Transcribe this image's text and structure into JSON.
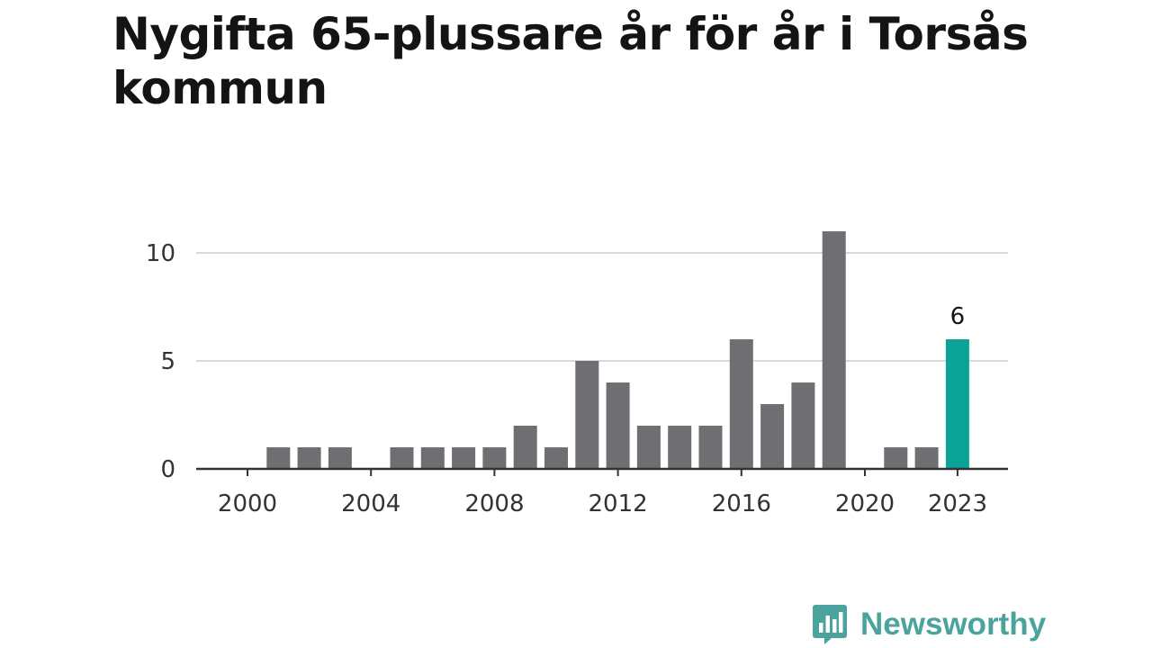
{
  "title": "Nygifta 65-plussare år för år i Torsås kommun",
  "brand": {
    "name": "Newsworthy",
    "icon": "newsworthy-logo-icon"
  },
  "colors": {
    "bar": "#6f6e73",
    "highlight": "#0ba297",
    "grid": "#d9d9d9",
    "axis": "#333333",
    "text": "#333333"
  },
  "chart_data": {
    "type": "bar",
    "x": [
      2000,
      2001,
      2002,
      2003,
      2004,
      2005,
      2006,
      2007,
      2008,
      2009,
      2010,
      2011,
      2012,
      2013,
      2014,
      2015,
      2016,
      2017,
      2018,
      2019,
      2020,
      2021,
      2022,
      2023
    ],
    "values": [
      0,
      1,
      1,
      1,
      0,
      1,
      1,
      1,
      1,
      2,
      1,
      5,
      4,
      2,
      2,
      2,
      6,
      3,
      4,
      11,
      0,
      1,
      1,
      6
    ],
    "x_ticks": [
      "2000",
      "2004",
      "2008",
      "2012",
      "2016",
      "2020",
      "2023"
    ],
    "y_ticks": [
      "0",
      "5",
      "10"
    ],
    "ylim": [
      0,
      11
    ],
    "grid": true,
    "highlight": {
      "x": 2023,
      "label": "6"
    }
  }
}
